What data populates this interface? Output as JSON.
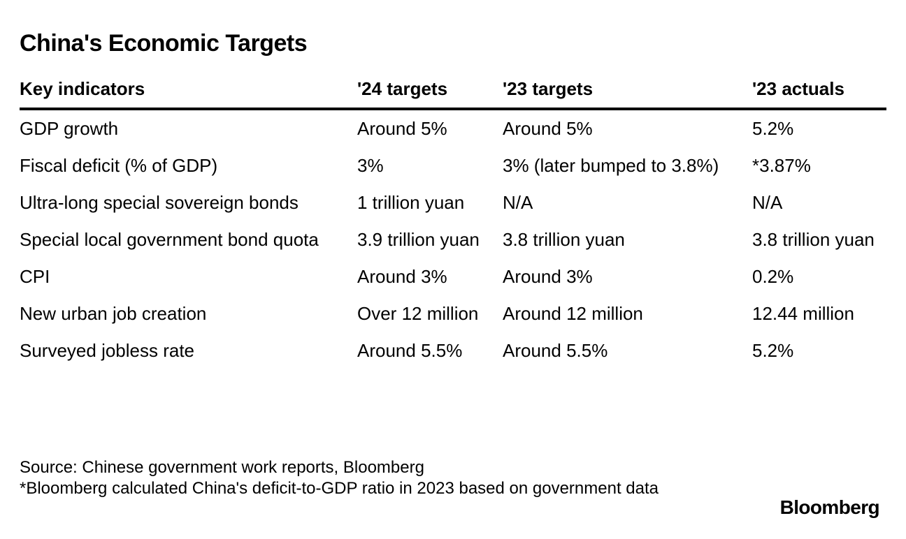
{
  "chart_data": {
    "type": "table",
    "title": "China's Economic Targets",
    "columns": [
      "Key indicators",
      "'24 targets",
      "'23 targets",
      "'23 actuals"
    ],
    "rows": [
      [
        "GDP growth",
        "Around 5%",
        "Around 5%",
        "5.2%"
      ],
      [
        "Fiscal deficit (% of GDP)",
        "3%",
        "3% (later bumped to 3.8%)",
        "*3.87%"
      ],
      [
        "Ultra-long special sovereign bonds",
        "1 trillion yuan",
        "N/A",
        "N/A"
      ],
      [
        "Special local government bond quota",
        "3.9 trillion yuan",
        "3.8 trillion yuan",
        "3.8 trillion yuan"
      ],
      [
        "CPI",
        "Around 3%",
        "Around 3%",
        "0.2%"
      ],
      [
        "New urban job creation",
        "Over 12 million",
        "Around 12 million",
        "12.44 million"
      ],
      [
        "Surveyed jobless rate",
        "Around 5.5%",
        "Around 5.5%",
        "5.2%"
      ]
    ],
    "source": "Source: Chinese government work reports, Bloomberg",
    "note": "*Bloomberg calculated China's deficit-to-GDP ratio in 2023 based on government data"
  },
  "brand": "Bloomberg",
  "colors": {
    "text": "#000000",
    "background": "#ffffff",
    "rule": "#000000"
  }
}
